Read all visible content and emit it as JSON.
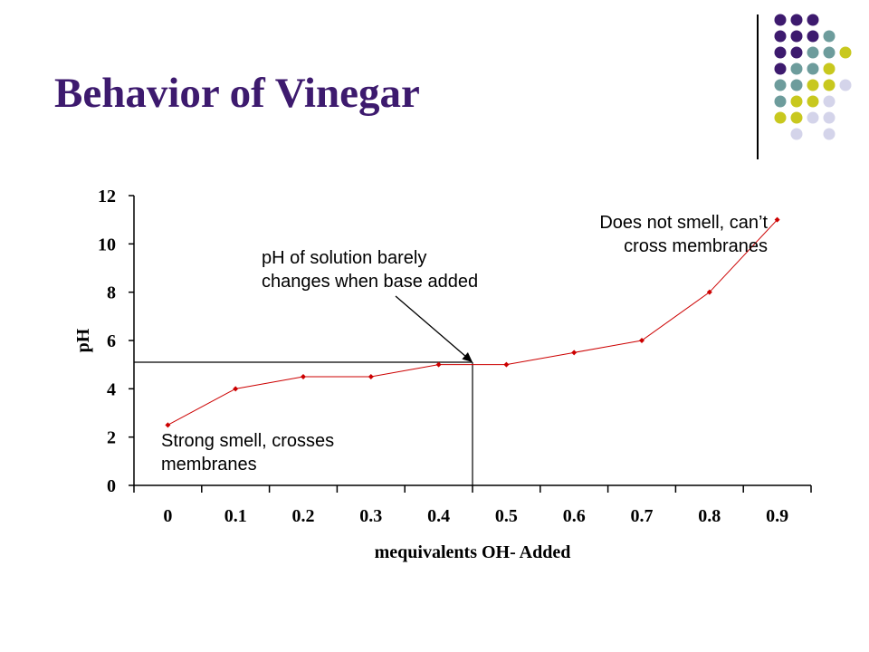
{
  "slide": {
    "title": "Behavior of Vinegar"
  },
  "decoration": {
    "dot_colors": {
      "purple": "#3d1a6e",
      "teal": "#6d9c9c",
      "yellow": "#c8c81e",
      "lavender": "#d4d4ea"
    },
    "dot_grid": [
      [
        "purple",
        "purple",
        "purple",
        "none",
        "none"
      ],
      [
        "purple",
        "purple",
        "purple",
        "teal",
        "none"
      ],
      [
        "purple",
        "purple",
        "teal",
        "teal",
        "yellow"
      ],
      [
        "purple",
        "teal",
        "teal",
        "yellow",
        "none"
      ],
      [
        "teal",
        "teal",
        "yellow",
        "yellow",
        "lavender"
      ],
      [
        "teal",
        "yellow",
        "yellow",
        "lavender",
        "none"
      ],
      [
        "yellow",
        "yellow",
        "lavender",
        "lavender",
        "none"
      ],
      [
        "none",
        "lavender",
        "none",
        "lavender",
        "none"
      ]
    ]
  },
  "chart_data": {
    "type": "line",
    "title": "",
    "xlabel": "mequivalents OH- Added",
    "ylabel": "pH",
    "x_categories": [
      "0",
      "0.1",
      "0.2",
      "0.3",
      "0.4",
      "0.5",
      "0.6",
      "0.7",
      "0.8",
      "0.9"
    ],
    "y_ticks": [
      "0",
      "2",
      "4",
      "6",
      "8",
      "10",
      "12"
    ],
    "ylim": [
      0,
      12
    ],
    "grid": false,
    "series": [
      {
        "color": "#cc0000",
        "x": [
          0.0,
          0.1,
          0.2,
          0.3,
          0.4,
          0.5,
          0.6,
          0.7,
          0.8,
          0.9
        ],
        "y": [
          2.5,
          4,
          4.5,
          4.5,
          5,
          5,
          5.5,
          6,
          8,
          11
        ]
      }
    ],
    "reference_lines": {
      "x": 0.45,
      "y": 5.1
    },
    "annotations": {
      "strong_smell": [
        "Strong smell, crosses",
        "membranes"
      ],
      "midpoint": [
        "pH of solution barely",
        "changes when base added"
      ],
      "no_smell": [
        "Does not smell, can’t",
        "cross membranes"
      ]
    }
  }
}
